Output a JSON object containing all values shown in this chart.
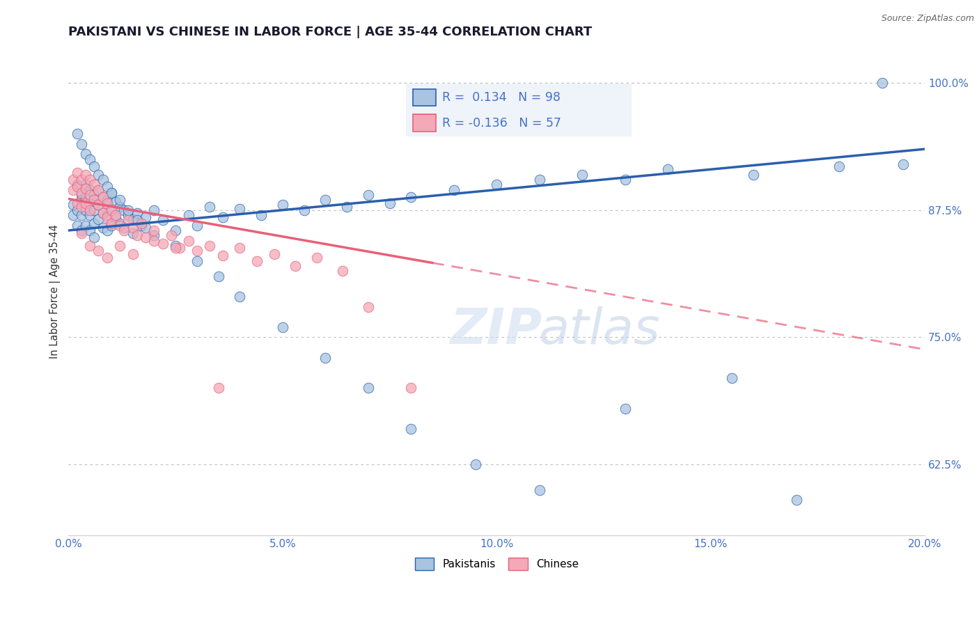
{
  "title": "PAKISTANI VS CHINESE IN LABOR FORCE | AGE 35-44 CORRELATION CHART",
  "source": "Source: ZipAtlas.com",
  "ylabel": "In Labor Force | Age 35-44",
  "xlim": [
    0.0,
    0.2
  ],
  "ylim": [
    0.555,
    1.035
  ],
  "yticks": [
    0.625,
    0.75,
    0.875,
    1.0
  ],
  "ytick_labels": [
    "62.5%",
    "75.0%",
    "87.5%",
    "100.0%"
  ],
  "xticks": [
    0.0,
    0.05,
    0.1,
    0.15,
    0.2
  ],
  "xtick_labels": [
    "0.0%",
    "5.0%",
    "10.0%",
    "15.0%",
    "20.0%"
  ],
  "R_pakistani": 0.134,
  "N_pakistani": 98,
  "R_chinese": -0.136,
  "N_chinese": 57,
  "color_pakistani": "#a8c4e0",
  "color_chinese": "#f4a9b8",
  "color_trend_pakistani": "#2b5fad",
  "color_trend_chinese": "#e8607a",
  "axis_color": "#4472c4",
  "legend_label_pakistani": "Pakistanis",
  "legend_label_chinese": "Chinese",
  "trend_p_x0": 0.0,
  "trend_p_y0": 0.855,
  "trend_p_x1": 0.2,
  "trend_p_y1": 0.935,
  "trend_c_x0": 0.0,
  "trend_c_y0": 0.886,
  "trend_c_x1": 0.2,
  "trend_c_y1": 0.738,
  "trend_c_solid_end": 0.085,
  "pakistani_x": [
    0.001,
    0.001,
    0.002,
    0.002,
    0.002,
    0.003,
    0.003,
    0.003,
    0.003,
    0.004,
    0.004,
    0.004,
    0.004,
    0.005,
    0.005,
    0.005,
    0.005,
    0.006,
    0.006,
    0.006,
    0.006,
    0.007,
    0.007,
    0.007,
    0.008,
    0.008,
    0.008,
    0.009,
    0.009,
    0.009,
    0.01,
    0.01,
    0.01,
    0.011,
    0.011,
    0.012,
    0.012,
    0.013,
    0.013,
    0.014,
    0.015,
    0.015,
    0.016,
    0.017,
    0.018,
    0.02,
    0.022,
    0.025,
    0.028,
    0.03,
    0.033,
    0.036,
    0.04,
    0.045,
    0.05,
    0.055,
    0.06,
    0.065,
    0.07,
    0.075,
    0.08,
    0.09,
    0.1,
    0.11,
    0.12,
    0.13,
    0.14,
    0.16,
    0.18,
    0.195,
    0.002,
    0.003,
    0.004,
    0.005,
    0.006,
    0.007,
    0.008,
    0.009,
    0.01,
    0.012,
    0.014,
    0.016,
    0.018,
    0.02,
    0.025,
    0.03,
    0.035,
    0.04,
    0.05,
    0.06,
    0.07,
    0.08,
    0.095,
    0.11,
    0.13,
    0.155,
    0.17,
    0.19
  ],
  "pakistani_y": [
    0.88,
    0.87,
    0.9,
    0.875,
    0.86,
    0.89,
    0.885,
    0.87,
    0.855,
    0.9,
    0.888,
    0.875,
    0.86,
    0.895,
    0.882,
    0.87,
    0.855,
    0.89,
    0.875,
    0.862,
    0.848,
    0.895,
    0.88,
    0.866,
    0.888,
    0.872,
    0.858,
    0.885,
    0.87,
    0.855,
    0.892,
    0.876,
    0.86,
    0.883,
    0.868,
    0.878,
    0.862,
    0.875,
    0.858,
    0.87,
    0.866,
    0.852,
    0.872,
    0.86,
    0.868,
    0.875,
    0.865,
    0.855,
    0.87,
    0.86,
    0.878,
    0.868,
    0.876,
    0.87,
    0.88,
    0.875,
    0.885,
    0.878,
    0.89,
    0.882,
    0.888,
    0.895,
    0.9,
    0.905,
    0.91,
    0.905,
    0.915,
    0.91,
    0.918,
    0.92,
    0.95,
    0.94,
    0.93,
    0.925,
    0.918,
    0.91,
    0.905,
    0.898,
    0.892,
    0.885,
    0.875,
    0.865,
    0.858,
    0.85,
    0.84,
    0.825,
    0.81,
    0.79,
    0.76,
    0.73,
    0.7,
    0.66,
    0.625,
    0.6,
    0.68,
    0.71,
    0.59,
    1.0
  ],
  "chinese_x": [
    0.001,
    0.001,
    0.002,
    0.002,
    0.002,
    0.003,
    0.003,
    0.003,
    0.004,
    0.004,
    0.004,
    0.005,
    0.005,
    0.005,
    0.006,
    0.006,
    0.007,
    0.007,
    0.008,
    0.008,
    0.009,
    0.009,
    0.01,
    0.01,
    0.011,
    0.012,
    0.013,
    0.014,
    0.015,
    0.016,
    0.017,
    0.018,
    0.02,
    0.022,
    0.024,
    0.026,
    0.028,
    0.03,
    0.033,
    0.036,
    0.04,
    0.044,
    0.048,
    0.053,
    0.058,
    0.064,
    0.003,
    0.005,
    0.007,
    0.009,
    0.012,
    0.015,
    0.02,
    0.025,
    0.035,
    0.07,
    0.08
  ],
  "chinese_y": [
    0.905,
    0.895,
    0.912,
    0.898,
    0.882,
    0.905,
    0.892,
    0.878,
    0.91,
    0.896,
    0.882,
    0.905,
    0.89,
    0.875,
    0.9,
    0.885,
    0.895,
    0.88,
    0.888,
    0.872,
    0.882,
    0.868,
    0.875,
    0.862,
    0.87,
    0.86,
    0.855,
    0.865,
    0.858,
    0.85,
    0.862,
    0.848,
    0.855,
    0.842,
    0.85,
    0.838,
    0.845,
    0.835,
    0.84,
    0.83,
    0.838,
    0.825,
    0.832,
    0.82,
    0.828,
    0.815,
    0.852,
    0.84,
    0.835,
    0.828,
    0.84,
    0.832,
    0.845,
    0.838,
    0.7,
    0.78,
    0.7
  ]
}
